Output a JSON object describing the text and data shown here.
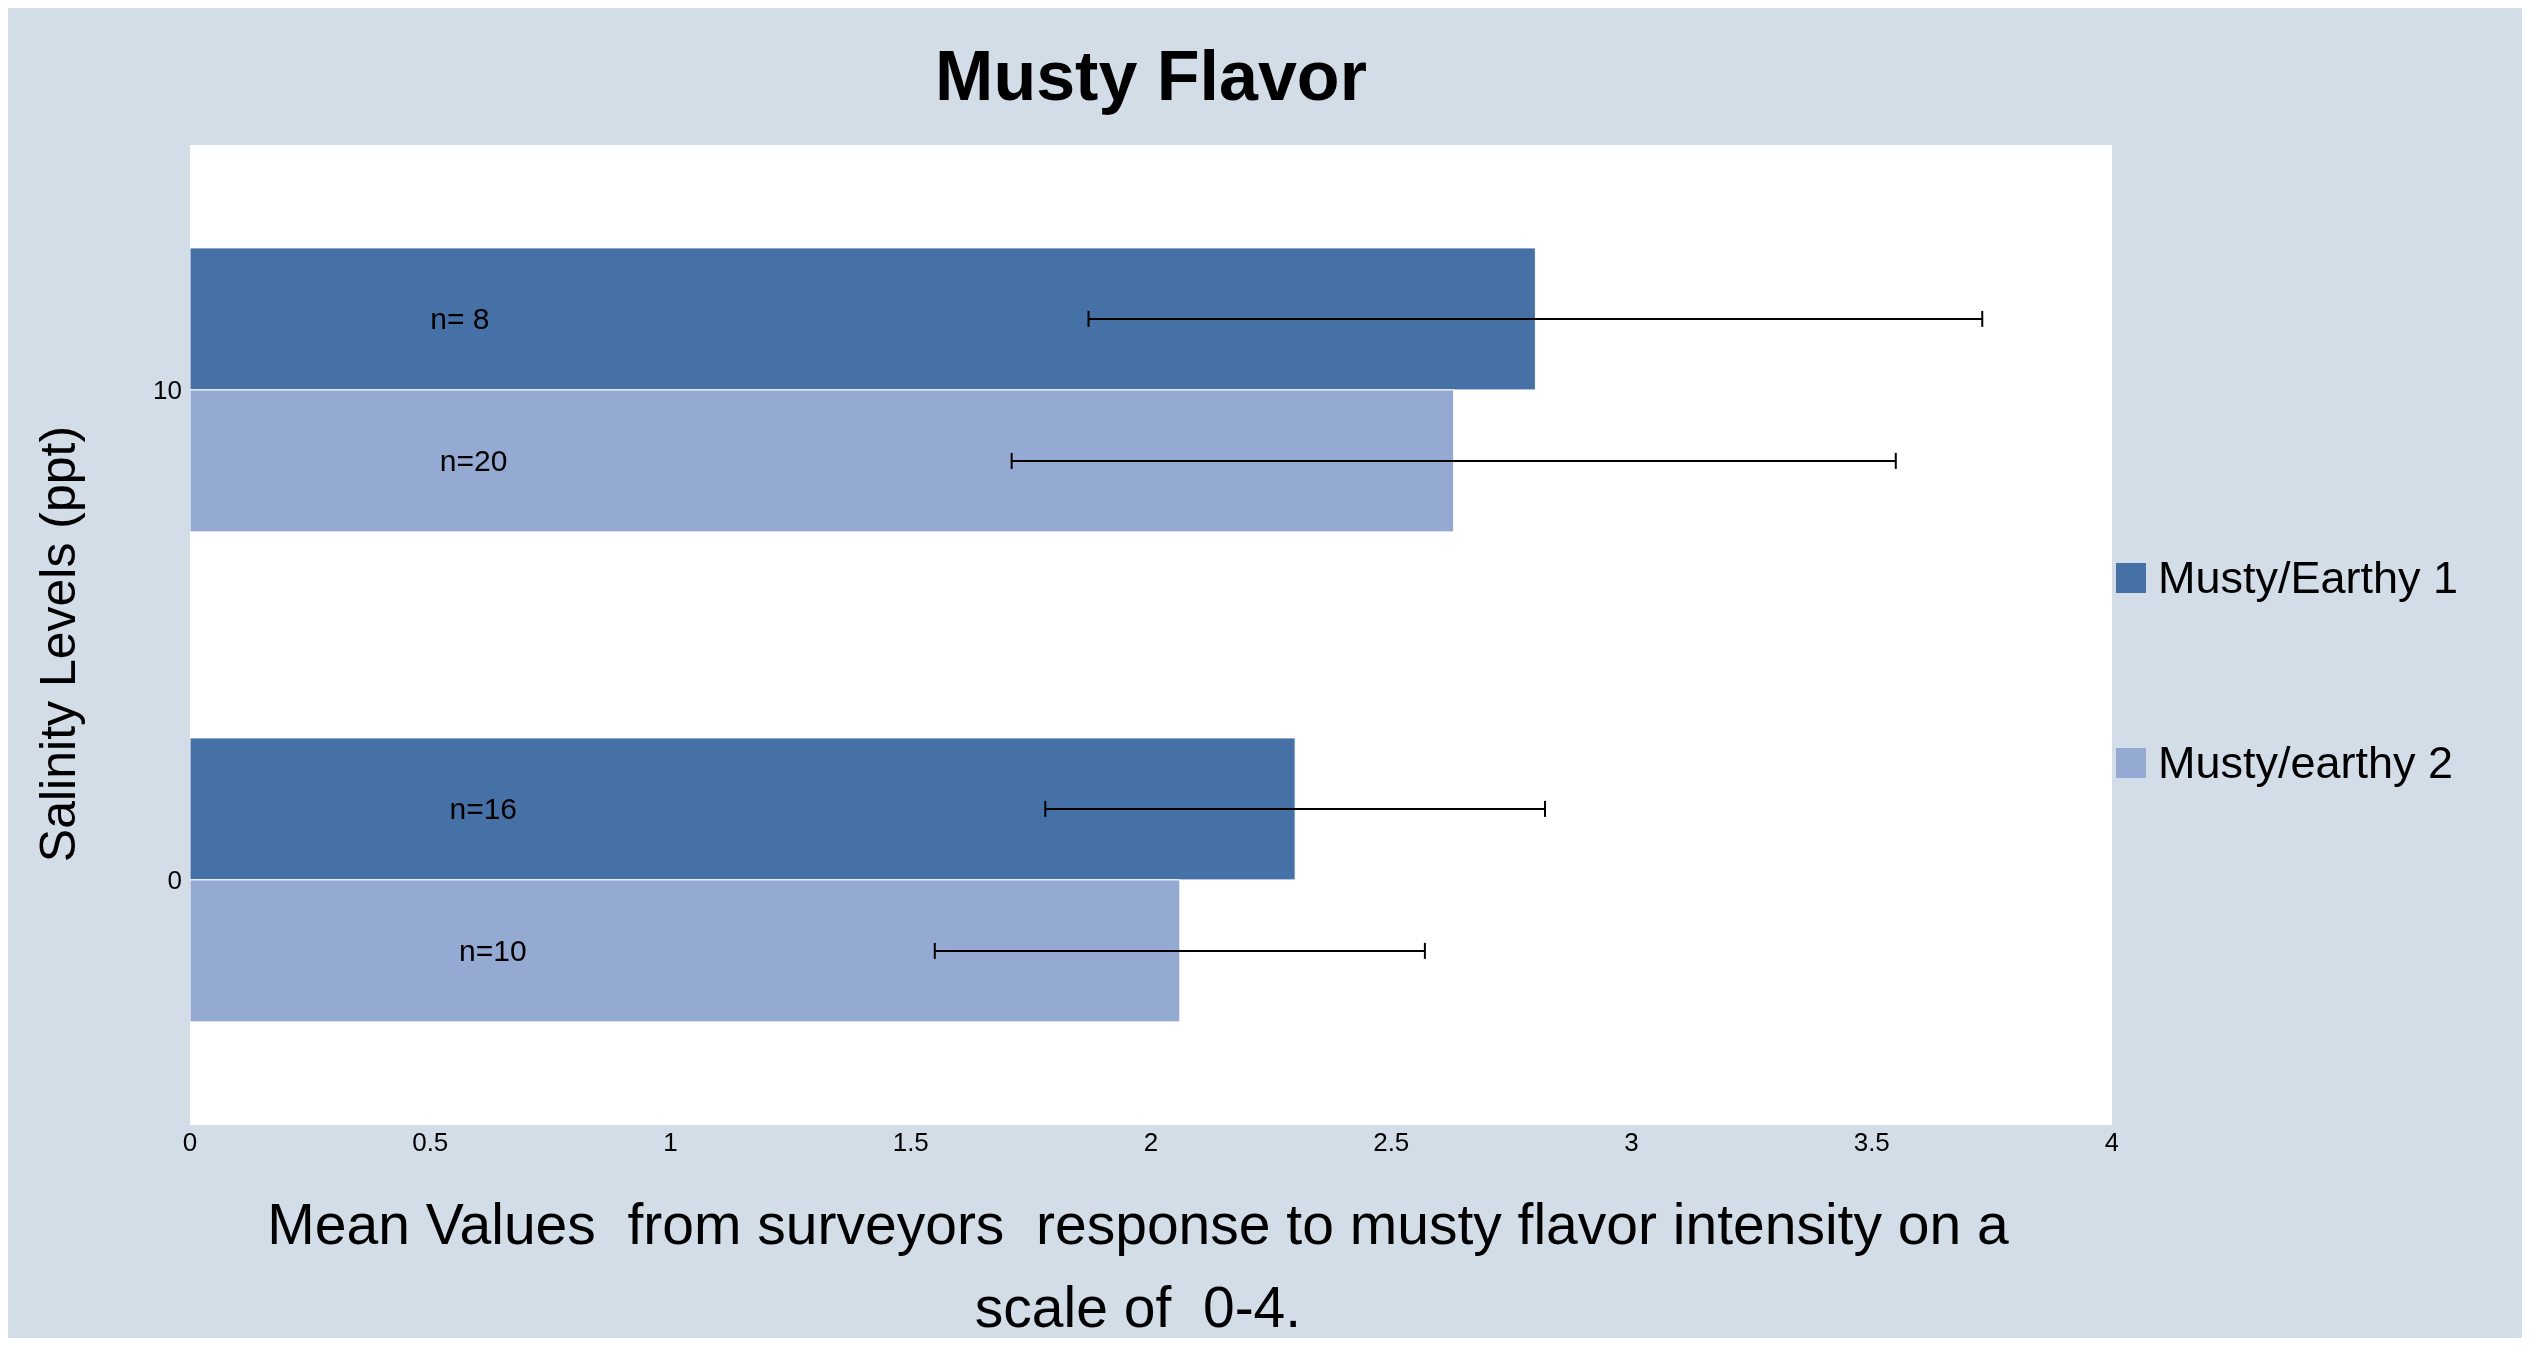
{
  "chart_data": {
    "type": "bar",
    "orientation": "horizontal",
    "title": "Musty Flavor",
    "xlabel": "Mean Values  from surveyors  response to musty flavor intensity on a scale of  0-4.",
    "ylabel": "Salinity Levels (ppt)",
    "categories": [
      "10",
      "0"
    ],
    "series": [
      {
        "name": "Musty/Earthy 1",
        "color": "#4671a6",
        "values": [
          2.8,
          2.3
        ],
        "errors": [
          0.93,
          0.52
        ]
      },
      {
        "name": "Musty/earthy 2",
        "color": "#95aad2",
        "values": [
          2.63,
          2.06
        ],
        "errors": [
          0.92,
          0.51
        ]
      }
    ],
    "annotations": [
      {
        "text": "n= 8",
        "x": 0.5,
        "y": "10"
      },
      {
        "text": "n=20",
        "x": 0.52,
        "y": "10"
      },
      {
        "text": "n=16",
        "x": 0.54,
        "y": "0"
      },
      {
        "text": "n=10",
        "x": 0.56,
        "y": "0"
      }
    ],
    "xlim": [
      0,
      4
    ],
    "xticks": [
      0,
      0.5,
      1,
      1.5,
      2,
      2.5,
      3,
      3.5,
      4
    ],
    "legend": "right"
  }
}
